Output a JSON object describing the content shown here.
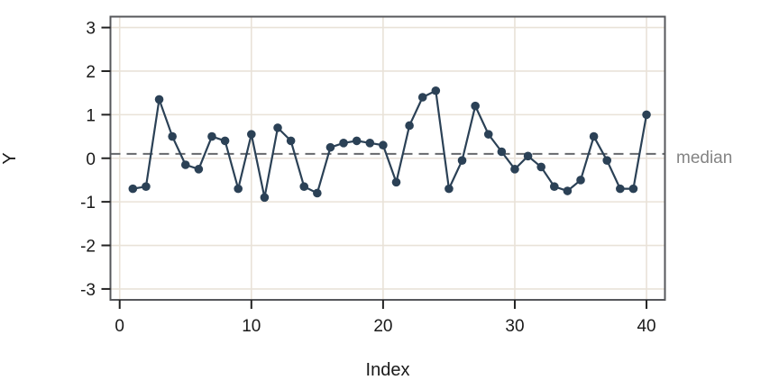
{
  "chart_data": {
    "type": "line",
    "title": "",
    "xlabel": "Index",
    "ylabel": "Y",
    "x": [
      1,
      2,
      3,
      4,
      5,
      6,
      7,
      8,
      9,
      10,
      11,
      12,
      13,
      14,
      15,
      16,
      17,
      18,
      19,
      20,
      21,
      22,
      23,
      24,
      25,
      26,
      27,
      28,
      29,
      30,
      31,
      32,
      33,
      34,
      35,
      36,
      37,
      38,
      39,
      40
    ],
    "y": [
      -0.7,
      -0.65,
      1.35,
      0.5,
      -0.15,
      -0.25,
      0.5,
      0.4,
      -0.7,
      0.55,
      -0.9,
      0.7,
      0.4,
      -0.65,
      -0.8,
      0.25,
      0.35,
      0.4,
      0.35,
      0.3,
      -0.55,
      0.75,
      1.4,
      1.55,
      -0.7,
      -0.05,
      1.2,
      0.55,
      0.15,
      -0.25,
      0.05,
      -0.2,
      -0.65,
      -0.75,
      -0.5,
      0.5,
      -0.05,
      -0.7,
      -0.7,
      1.0
    ],
    "xticks": [
      0,
      10,
      20,
      30,
      40
    ],
    "yticks": [
      3,
      2,
      1,
      0,
      -1,
      -2,
      -3
    ],
    "xlim": [
      -0.7,
      41.4
    ],
    "ylim": [
      -3.25,
      3.25
    ],
    "grid": true,
    "legend": "none",
    "reference_line": {
      "value": 0.1,
      "label": "median",
      "style": "dashed"
    },
    "colors": {
      "series": "#2b4156",
      "marker": "#2b4156",
      "grid": "#e9e2d8",
      "frame": "#56575b",
      "tick": "#222222",
      "tick_text": "#1a1a1a",
      "axis_title_text": "#1a1a1a",
      "median_line": "#66686c",
      "median_text": "#848484",
      "background": "#ffffff"
    }
  }
}
